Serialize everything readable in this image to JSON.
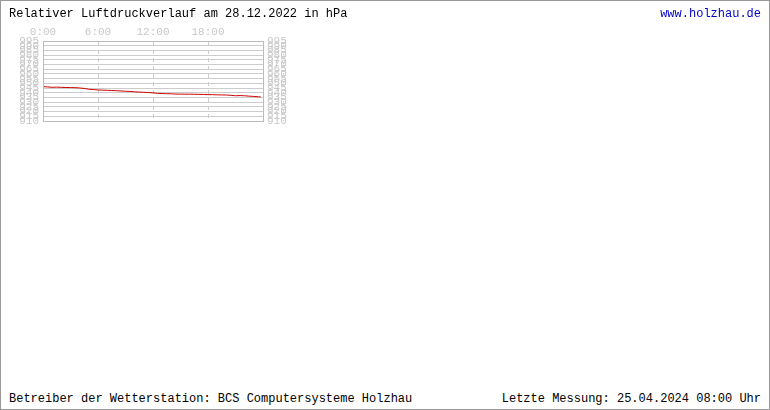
{
  "chart_data": {
    "type": "line",
    "title": "Relativer Luftdruckverlauf am 28.12.2022 in hPa",
    "source": "www.holzhau.de",
    "footer_left": "Betreiber der Wetterstation: BCS Computersysteme Holzhau",
    "footer_right": "Letzte Messung: 25.04.2024 08:00 Uhr",
    "x": [
      0,
      0.5,
      1,
      1.5,
      2,
      2.5,
      3,
      3.5,
      4,
      4.5,
      5,
      5.5,
      6,
      6.5,
      7,
      7.5,
      8,
      8.5,
      9,
      9.5,
      10,
      10.5,
      11,
      11.5,
      12,
      12.5,
      13,
      13.5,
      14,
      14.5,
      15,
      15.5,
      16,
      16.5,
      17,
      17.5,
      18,
      18.5,
      19,
      19.5,
      20,
      20.5,
      21,
      21.5,
      22,
      22.5,
      23,
      23.5,
      23.75
    ],
    "values": [
      946.5,
      946.2,
      945.8,
      946.0,
      945.7,
      945.6,
      945.5,
      945.4,
      945.1,
      944.6,
      943.8,
      943.4,
      943.0,
      942.8,
      942.6,
      942.4,
      942.2,
      941.9,
      941.6,
      941.4,
      941.0,
      940.7,
      940.5,
      940.2,
      939.9,
      939.4,
      939.2,
      939.0,
      938.9,
      938.6,
      938.6,
      938.5,
      938.5,
      938.4,
      938.3,
      938.2,
      938.0,
      938.0,
      937.8,
      937.7,
      937.6,
      937.3,
      936.8,
      937.0,
      936.8,
      936.4,
      936.1,
      935.7,
      935.6
    ],
    "color": "#cc0000",
    "xlim": [
      0,
      24
    ],
    "xticks": [
      {
        "value": 0,
        "label": "0:00"
      },
      {
        "value": 6,
        "label": "6:00"
      },
      {
        "value": 12,
        "label": "12:00"
      },
      {
        "value": 18,
        "label": "18:00"
      }
    ],
    "ylim": [
      910,
      995
    ],
    "yticks": [
      910,
      915,
      920,
      925,
      930,
      935,
      940,
      945,
      950,
      955,
      960,
      965,
      970,
      975,
      980,
      985,
      990,
      995
    ],
    "grid": true
  }
}
